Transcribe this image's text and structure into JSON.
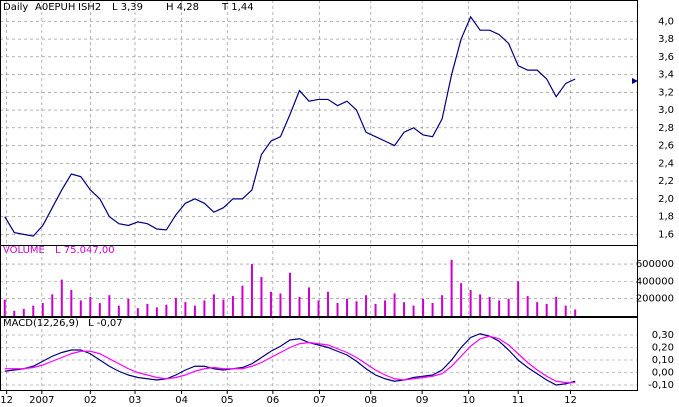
{
  "chart_data": [
    {
      "type": "line",
      "title": "Daily",
      "symbol": "A0EPUH",
      "name": "ISH2",
      "low": "L  3,39",
      "high": "H  4,28",
      "last": "T  1,44",
      "x": [
        0,
        1,
        2,
        3,
        4,
        5,
        6,
        7,
        8,
        9,
        10,
        11,
        12,
        13,
        14,
        15,
        16,
        17,
        18,
        19,
        20,
        21,
        22,
        23,
        24,
        25,
        26,
        27,
        28,
        29,
        30,
        31,
        32,
        33,
        34,
        35,
        36,
        37,
        38,
        39,
        40,
        41,
        42,
        43,
        44,
        45,
        46,
        47,
        48,
        49,
        50,
        51,
        52,
        53,
        54,
        55,
        56,
        57,
        58,
        59,
        60
      ],
      "xlim": [
        -0.5,
        66.5
      ],
      "series": [
        {
          "name": "Price",
          "color": "#000080",
          "values": [
            1.8,
            1.62,
            1.6,
            1.58,
            1.7,
            1.9,
            2.1,
            2.28,
            2.25,
            2.1,
            2.0,
            1.8,
            1.72,
            1.7,
            1.74,
            1.72,
            1.66,
            1.65,
            1.82,
            1.95,
            2.0,
            1.95,
            1.85,
            1.9,
            2.0,
            2.0,
            2.1,
            2.5,
            2.65,
            2.7,
            2.95,
            3.22,
            3.1,
            3.12,
            3.12,
            3.05,
            3.1,
            3.0,
            2.75,
            2.7,
            2.65,
            2.6,
            2.75,
            2.8,
            2.72,
            2.7,
            2.9,
            3.4,
            3.8,
            4.05,
            3.9,
            3.9,
            3.85,
            3.75,
            3.5,
            3.45,
            3.45,
            3.35,
            3.15,
            3.3,
            3.35
          ]
        }
      ],
      "ylim": [
        1.48,
        4.24
      ],
      "yticks": [
        {
          "value": 1.6,
          "label": "1,6"
        },
        {
          "value": 1.8,
          "label": "1,8"
        },
        {
          "value": 2.0,
          "label": "2,0"
        },
        {
          "value": 2.2,
          "label": "2,2"
        },
        {
          "value": 2.4,
          "label": "2,4"
        },
        {
          "value": 2.6,
          "label": "2,6"
        },
        {
          "value": 2.8,
          "label": "2,8"
        },
        {
          "value": 3.0,
          "label": "3,0"
        },
        {
          "value": 3.2,
          "label": "3,2"
        },
        {
          "value": 3.4,
          "label": "3,4"
        },
        {
          "value": 3.6,
          "label": "3,6"
        },
        {
          "value": 3.8,
          "label": "3,8"
        },
        {
          "value": 4.0,
          "label": "4,0"
        }
      ],
      "grid": true
    },
    {
      "type": "bar",
      "title": "VOLUME",
      "last": "L  75.047,00",
      "x": [
        0,
        1,
        2,
        3,
        4,
        5,
        6,
        7,
        8,
        9,
        10,
        11,
        12,
        13,
        14,
        15,
        16,
        17,
        18,
        19,
        20,
        21,
        22,
        23,
        24,
        25,
        26,
        27,
        28,
        29,
        30,
        31,
        32,
        33,
        34,
        35,
        36,
        37,
        38,
        39,
        40,
        41,
        42,
        43,
        44,
        45,
        46,
        47,
        48,
        49,
        50,
        51,
        52,
        53,
        54,
        55,
        56,
        57,
        58,
        59,
        60
      ],
      "xlim": [
        -0.5,
        66.5
      ],
      "series": [
        {
          "name": "Volume",
          "color": "#cc00cc",
          "values": [
            190000,
            60000,
            80000,
            120000,
            150000,
            250000,
            420000,
            300000,
            180000,
            220000,
            150000,
            240000,
            120000,
            200000,
            90000,
            140000,
            100000,
            130000,
            210000,
            160000,
            120000,
            180000,
            250000,
            190000,
            230000,
            350000,
            600000,
            450000,
            280000,
            260000,
            500000,
            220000,
            330000,
            180000,
            280000,
            150000,
            200000,
            170000,
            240000,
            140000,
            180000,
            260000,
            160000,
            120000,
            200000,
            150000,
            240000,
            650000,
            380000,
            300000,
            250000,
            220000,
            180000,
            200000,
            400000,
            230000,
            160000,
            140000,
            220000,
            120000,
            75047
          ]
        }
      ],
      "ylim": [
        0,
        820000
      ],
      "yticks": [
        200000,
        400000,
        600000
      ],
      "grid": true
    },
    {
      "type": "line",
      "title": "MACD(12,26,9)",
      "last": "L  -0,07",
      "x": [
        0,
        1,
        2,
        3,
        4,
        5,
        6,
        7,
        8,
        9,
        10,
        11,
        12,
        13,
        14,
        15,
        16,
        17,
        18,
        19,
        20,
        21,
        22,
        23,
        24,
        25,
        26,
        27,
        28,
        29,
        30,
        31,
        32,
        33,
        34,
        35,
        36,
        37,
        38,
        39,
        40,
        41,
        42,
        43,
        44,
        45,
        46,
        47,
        48,
        49,
        50,
        51,
        52,
        53,
        54,
        55,
        56,
        57,
        58,
        59,
        60
      ],
      "xlim": [
        -0.5,
        66.5
      ],
      "series": [
        {
          "name": "MACD",
          "color": "#000080",
          "values": [
            0.01,
            0.02,
            0.03,
            0.05,
            0.09,
            0.13,
            0.16,
            0.18,
            0.18,
            0.15,
            0.1,
            0.05,
            0.01,
            -0.02,
            -0.04,
            -0.05,
            -0.06,
            -0.05,
            -0.02,
            0.02,
            0.05,
            0.05,
            0.03,
            0.02,
            0.03,
            0.04,
            0.07,
            0.12,
            0.17,
            0.21,
            0.26,
            0.27,
            0.24,
            0.22,
            0.2,
            0.17,
            0.14,
            0.09,
            0.03,
            -0.02,
            -0.05,
            -0.07,
            -0.06,
            -0.04,
            -0.03,
            -0.02,
            0.02,
            0.1,
            0.2,
            0.28,
            0.31,
            0.29,
            0.25,
            0.18,
            0.1,
            0.04,
            -0.01,
            -0.06,
            -0.1,
            -0.09,
            -0.07
          ]
        },
        {
          "name": "Signal",
          "color": "#ff00ff",
          "values": [
            0.03,
            0.03,
            0.03,
            0.04,
            0.06,
            0.09,
            0.12,
            0.15,
            0.17,
            0.17,
            0.15,
            0.11,
            0.07,
            0.03,
            0.0,
            -0.02,
            -0.04,
            -0.05,
            -0.04,
            -0.02,
            0.01,
            0.03,
            0.04,
            0.03,
            0.03,
            0.03,
            0.05,
            0.08,
            0.12,
            0.16,
            0.2,
            0.23,
            0.24,
            0.23,
            0.22,
            0.19,
            0.16,
            0.12,
            0.07,
            0.02,
            -0.02,
            -0.05,
            -0.06,
            -0.05,
            -0.04,
            -0.03,
            -0.01,
            0.05,
            0.13,
            0.21,
            0.27,
            0.29,
            0.27,
            0.22,
            0.15,
            0.08,
            0.02,
            -0.03,
            -0.07,
            -0.08,
            -0.08
          ]
        }
      ],
      "ylim": [
        -0.14,
        0.444
      ],
      "yticks": [
        {
          "value": -0.1,
          "label": "-0,10"
        },
        {
          "value": 0.0,
          "label": "0,00"
        },
        {
          "value": 0.1,
          "label": "0,10"
        },
        {
          "value": 0.2,
          "label": "0,20"
        },
        {
          "value": 0.3,
          "label": "0,30"
        }
      ],
      "xticks": [
        {
          "value": 0.2,
          "label": "12"
        },
        {
          "value": 3.9,
          "label": "2007"
        },
        {
          "value": 9,
          "label": "02"
        },
        {
          "value": 13.7,
          "label": "03"
        },
        {
          "value": 18.6,
          "label": "04"
        },
        {
          "value": 23.4,
          "label": "05"
        },
        {
          "value": 28.2,
          "label": "06"
        },
        {
          "value": 33.1,
          "label": "07"
        },
        {
          "value": 38.5,
          "label": "08"
        },
        {
          "value": 43.9,
          "label": "09"
        },
        {
          "value": 48.8,
          "label": "10"
        },
        {
          "value": 54,
          "label": "11"
        },
        {
          "value": 59.5,
          "label": "12"
        }
      ],
      "grid": true
    }
  ]
}
